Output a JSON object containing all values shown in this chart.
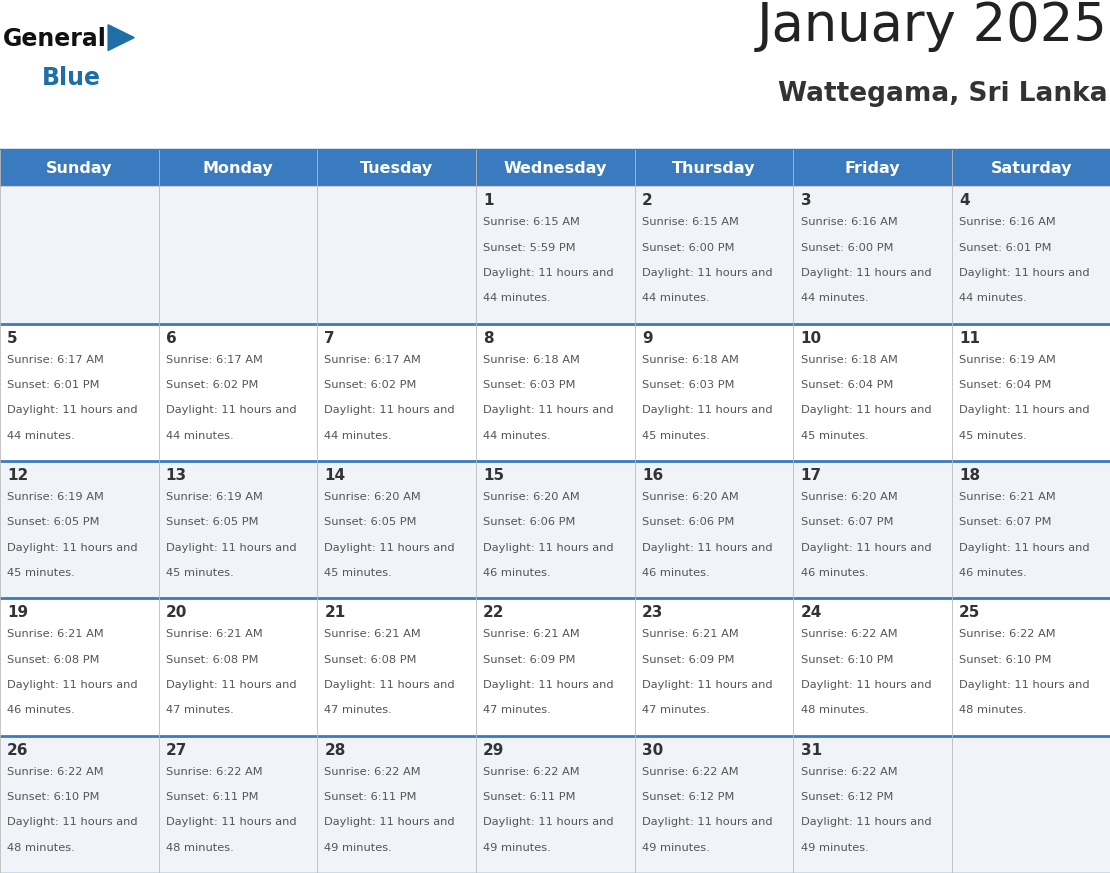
{
  "title": "January 2025",
  "subtitle": "Wattegama, Sri Lanka",
  "header_bg": "#3a7abf",
  "header_text": "#ffffff",
  "days_of_week": [
    "Sunday",
    "Monday",
    "Tuesday",
    "Wednesday",
    "Thursday",
    "Friday",
    "Saturday"
  ],
  "row_bg_even": "#f0f4f8",
  "row_bg_odd": "#ffffff",
  "day_number_color": "#333333",
  "info_text_color": "#555555",
  "logo_triangle_color": "#1e6fa8",
  "logo_blue_color": "#1e6fa8",
  "logo_general_color": "#111111",
  "grid_line_color": "#3a7abf",
  "calendar_data": [
    [
      {
        "day": null,
        "sunrise": null,
        "sunset": null,
        "daylight": null
      },
      {
        "day": null,
        "sunrise": null,
        "sunset": null,
        "daylight": null
      },
      {
        "day": null,
        "sunrise": null,
        "sunset": null,
        "daylight": null
      },
      {
        "day": 1,
        "sunrise": "6:15 AM",
        "sunset": "5:59 PM",
        "daylight": "11 hours and 44 minutes."
      },
      {
        "day": 2,
        "sunrise": "6:15 AM",
        "sunset": "6:00 PM",
        "daylight": "11 hours and 44 minutes."
      },
      {
        "day": 3,
        "sunrise": "6:16 AM",
        "sunset": "6:00 PM",
        "daylight": "11 hours and 44 minutes."
      },
      {
        "day": 4,
        "sunrise": "6:16 AM",
        "sunset": "6:01 PM",
        "daylight": "11 hours and 44 minutes."
      }
    ],
    [
      {
        "day": 5,
        "sunrise": "6:17 AM",
        "sunset": "6:01 PM",
        "daylight": "11 hours and 44 minutes."
      },
      {
        "day": 6,
        "sunrise": "6:17 AM",
        "sunset": "6:02 PM",
        "daylight": "11 hours and 44 minutes."
      },
      {
        "day": 7,
        "sunrise": "6:17 AM",
        "sunset": "6:02 PM",
        "daylight": "11 hours and 44 minutes."
      },
      {
        "day": 8,
        "sunrise": "6:18 AM",
        "sunset": "6:03 PM",
        "daylight": "11 hours and 44 minutes."
      },
      {
        "day": 9,
        "sunrise": "6:18 AM",
        "sunset": "6:03 PM",
        "daylight": "11 hours and 45 minutes."
      },
      {
        "day": 10,
        "sunrise": "6:18 AM",
        "sunset": "6:04 PM",
        "daylight": "11 hours and 45 minutes."
      },
      {
        "day": 11,
        "sunrise": "6:19 AM",
        "sunset": "6:04 PM",
        "daylight": "11 hours and 45 minutes."
      }
    ],
    [
      {
        "day": 12,
        "sunrise": "6:19 AM",
        "sunset": "6:05 PM",
        "daylight": "11 hours and 45 minutes."
      },
      {
        "day": 13,
        "sunrise": "6:19 AM",
        "sunset": "6:05 PM",
        "daylight": "11 hours and 45 minutes."
      },
      {
        "day": 14,
        "sunrise": "6:20 AM",
        "sunset": "6:05 PM",
        "daylight": "11 hours and 45 minutes."
      },
      {
        "day": 15,
        "sunrise": "6:20 AM",
        "sunset": "6:06 PM",
        "daylight": "11 hours and 46 minutes."
      },
      {
        "day": 16,
        "sunrise": "6:20 AM",
        "sunset": "6:06 PM",
        "daylight": "11 hours and 46 minutes."
      },
      {
        "day": 17,
        "sunrise": "6:20 AM",
        "sunset": "6:07 PM",
        "daylight": "11 hours and 46 minutes."
      },
      {
        "day": 18,
        "sunrise": "6:21 AM",
        "sunset": "6:07 PM",
        "daylight": "11 hours and 46 minutes."
      }
    ],
    [
      {
        "day": 19,
        "sunrise": "6:21 AM",
        "sunset": "6:08 PM",
        "daylight": "11 hours and 46 minutes."
      },
      {
        "day": 20,
        "sunrise": "6:21 AM",
        "sunset": "6:08 PM",
        "daylight": "11 hours and 47 minutes."
      },
      {
        "day": 21,
        "sunrise": "6:21 AM",
        "sunset": "6:08 PM",
        "daylight": "11 hours and 47 minutes."
      },
      {
        "day": 22,
        "sunrise": "6:21 AM",
        "sunset": "6:09 PM",
        "daylight": "11 hours and 47 minutes."
      },
      {
        "day": 23,
        "sunrise": "6:21 AM",
        "sunset": "6:09 PM",
        "daylight": "11 hours and 47 minutes."
      },
      {
        "day": 24,
        "sunrise": "6:22 AM",
        "sunset": "6:10 PM",
        "daylight": "11 hours and 48 minutes."
      },
      {
        "day": 25,
        "sunrise": "6:22 AM",
        "sunset": "6:10 PM",
        "daylight": "11 hours and 48 minutes."
      }
    ],
    [
      {
        "day": 26,
        "sunrise": "6:22 AM",
        "sunset": "6:10 PM",
        "daylight": "11 hours and 48 minutes."
      },
      {
        "day": 27,
        "sunrise": "6:22 AM",
        "sunset": "6:11 PM",
        "daylight": "11 hours and 48 minutes."
      },
      {
        "day": 28,
        "sunrise": "6:22 AM",
        "sunset": "6:11 PM",
        "daylight": "11 hours and 49 minutes."
      },
      {
        "day": 29,
        "sunrise": "6:22 AM",
        "sunset": "6:11 PM",
        "daylight": "11 hours and 49 minutes."
      },
      {
        "day": 30,
        "sunrise": "6:22 AM",
        "sunset": "6:12 PM",
        "daylight": "11 hours and 49 minutes."
      },
      {
        "day": 31,
        "sunrise": "6:22 AM",
        "sunset": "6:12 PM",
        "daylight": "11 hours and 49 minutes."
      },
      {
        "day": null,
        "sunrise": null,
        "sunset": null,
        "daylight": null
      }
    ]
  ]
}
